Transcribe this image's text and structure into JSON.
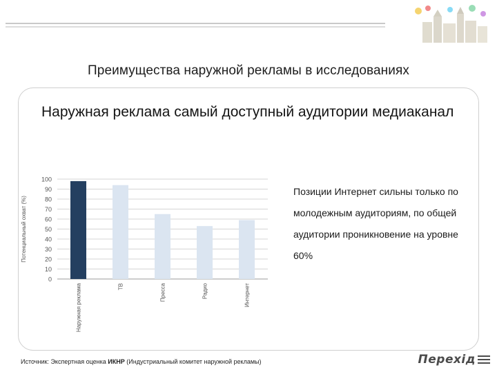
{
  "title": "Преимущества наружной рекламы в исследованиях",
  "lead_text": "Наружная реклама самый доступный аудитории медиаканал",
  "note_text": "Позиции Интернет сильны только по молодежным аудиториям, по общей аудитории проникновение на уровне 60%",
  "source": {
    "label": "Источник:",
    "text": "Экспертная оценка",
    "org": "ИКНР",
    "detail": "(Индустриальный комитет наружной рекламы)"
  },
  "logo": {
    "text": "Перехід",
    "icon": "stripes-logo-icon"
  },
  "decoration": {
    "icon": "city-illustration-icon"
  },
  "colors": {
    "highlight_bar": "#243f60",
    "normal_bar": "#dbe5f1",
    "grid": "#d4d4d4",
    "frame": "#cfcfcf"
  },
  "chart_data": {
    "type": "bar",
    "title": "",
    "ylabel": "Потенциальный охват (%)",
    "xlabel": "",
    "ylim": [
      0,
      100
    ],
    "yticks": [
      0,
      10,
      20,
      30,
      40,
      50,
      60,
      70,
      80,
      90,
      100
    ],
    "grid": true,
    "legend": "none",
    "categories": [
      "Наружная реклама",
      "ТВ",
      "Пресса",
      "Радио",
      "Интернет"
    ],
    "values": [
      98,
      94,
      65,
      53,
      59
    ],
    "highlight_index": 0
  }
}
